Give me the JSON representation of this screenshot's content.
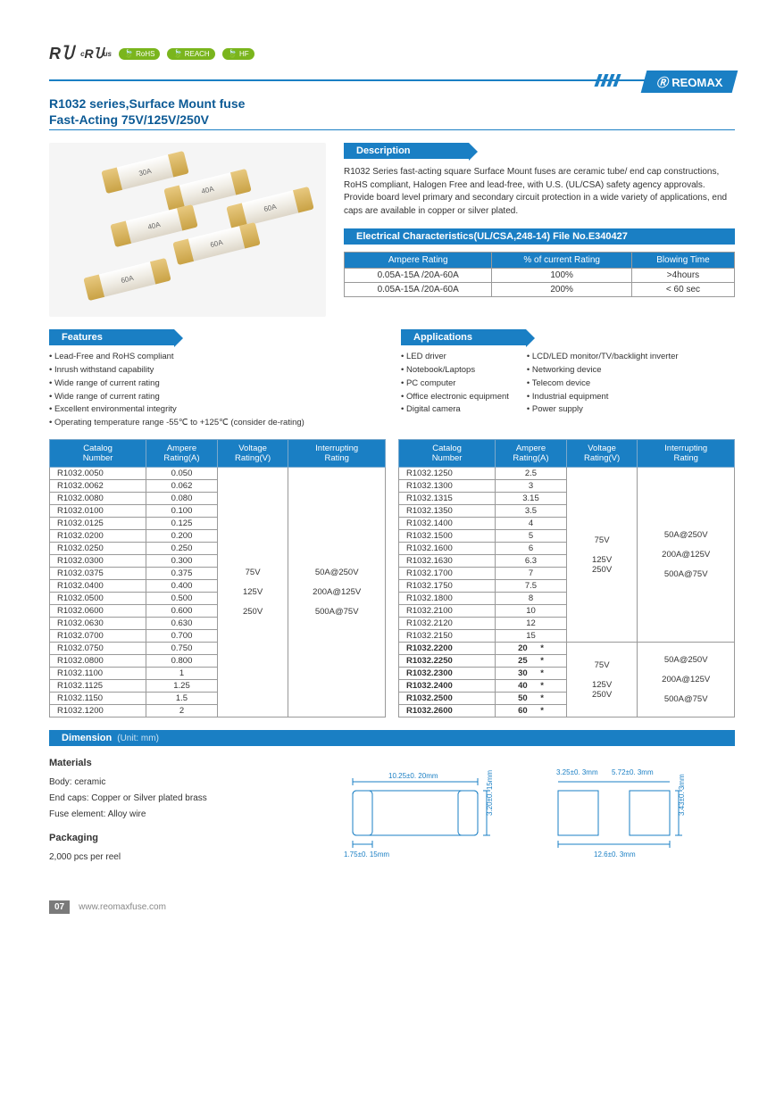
{
  "certifications": [
    "RoHS",
    "REACH",
    "HF"
  ],
  "brand": "REOMAX",
  "title_line1": "R1032 series,Surface Mount fuse",
  "title_line2": "Fast-Acting 75V/125V/250V",
  "fuse_labels": [
    "30A",
    "40A",
    "60A",
    "40A",
    "60A",
    "60A"
  ],
  "sections": {
    "description": "Description",
    "elec": "Electrical Characteristics(UL/CSA,248-14) File No.E340427",
    "features": "Features",
    "applications": "Applications",
    "dimension": "Dimension",
    "dim_unit": "(Unit: mm)"
  },
  "description_text": "R1032 Series fast-acting square Surface Mount fuses are ceramic tube/ end cap constructions, RoHS compliant, Halogen Free and lead-free, with U.S. (UL/CSA) safety agency approvals. Provide board level primary and secondary circuit protection  in a wide variety of applications, end caps are available in copper or silver plated.",
  "elec_table": {
    "headers": [
      "Ampere Rating",
      "% of current Rating",
      "Blowing Time"
    ],
    "rows": [
      [
        "0.05A-15A /20A-60A",
        "100%",
        ">4hours"
      ],
      [
        "0.05A-15A /20A-60A",
        "200%",
        "< 60 sec"
      ]
    ]
  },
  "features": [
    "Lead-Free and RoHS compliant",
    "Inrush withstand capability",
    "Wide range of current rating",
    "Wide range of current rating",
    "Excellent environmental integrity",
    "Operating temperature range -55℃ to +125℃ (consider de-rating)"
  ],
  "applications_col1": [
    "LED driver",
    "Notebook/Laptops",
    "PC computer",
    "Office electronic equipment",
    "Digital camera"
  ],
  "applications_col2": [
    "LCD/LED monitor/TV/backlight inverter",
    "Networking device",
    "Telecom device",
    "Industrial equipment",
    "Power supply"
  ],
  "spec_headers": [
    "Catalog\nNumber",
    "Ampere\nRating(A)",
    "Voltage\nRating(V)",
    "Interrupting\nRating"
  ],
  "spec_left": {
    "rows": [
      [
        "R1032.0050",
        "0.050"
      ],
      [
        "R1032.0062",
        "0.062"
      ],
      [
        "R1032.0080",
        "0.080"
      ],
      [
        "R1032.0100",
        "0.100"
      ],
      [
        "R1032.0125",
        "0.125"
      ],
      [
        "R1032.0200",
        "0.200"
      ],
      [
        "R1032.0250",
        "0.250"
      ],
      [
        "R1032.0300",
        "0.300"
      ],
      [
        "R1032.0375",
        "0.375"
      ],
      [
        "R1032.0400",
        "0.400"
      ],
      [
        "R1032.0500",
        "0.500"
      ],
      [
        "R1032.0600",
        "0.600"
      ],
      [
        "R1032.0630",
        "0.630"
      ],
      [
        "R1032.0700",
        "0.700"
      ],
      [
        "R1032.0750",
        "0.750"
      ],
      [
        "R1032.0800",
        "0.800"
      ],
      [
        "R1032.1100",
        "1"
      ],
      [
        "R1032.1125",
        "1.25"
      ],
      [
        "R1032.1150",
        "1.5"
      ],
      [
        "R1032.1200",
        "2"
      ]
    ],
    "voltage": "75V\n\n125V\n\n250V",
    "interrupt": "50A@250V\n\n200A@125V\n\n500A@75V"
  },
  "spec_right": {
    "rows1": [
      [
        "R1032.1250",
        "2.5"
      ],
      [
        "R1032.1300",
        "3"
      ],
      [
        "R1032.1315",
        "3.15"
      ],
      [
        "R1032.1350",
        "3.5"
      ],
      [
        "R1032.1400",
        "4"
      ],
      [
        "R1032.1500",
        "5"
      ],
      [
        "R1032.1600",
        "6"
      ],
      [
        "R1032.1630",
        "6.3"
      ],
      [
        "R1032.1700",
        "7"
      ],
      [
        "R1032.1750",
        "7.5"
      ],
      [
        "R1032.1800",
        "8"
      ],
      [
        "R1032.2100",
        "10"
      ],
      [
        "R1032.2120",
        "12"
      ],
      [
        "R1032.2150",
        "15"
      ]
    ],
    "rows2": [
      [
        "R1032.2200",
        "20",
        "*"
      ],
      [
        "R1032.2250",
        "25",
        "*"
      ],
      [
        "R1032.2300",
        "30",
        "*"
      ],
      [
        "R1032.2400",
        "40",
        "*"
      ],
      [
        "R1032.2500",
        "50",
        "*"
      ],
      [
        "R1032.2600",
        "60",
        "*"
      ]
    ],
    "voltage1": "75V\n\n125V\n250V",
    "interrupt1": "50A@250V\n\n200A@125V\n\n500A@75V",
    "voltage2": "75V\n\n125V\n250V",
    "interrupt2": "50A@250V\n\n200A@125V\n\n500A@75V"
  },
  "materials": {
    "heading": "Materials",
    "body": "Body: ceramic",
    "caps": "End caps: Copper or Silver plated brass",
    "element": "Fuse element: Alloy wire"
  },
  "packaging": {
    "heading": "Packaging",
    "text": "2,000 pcs per reel"
  },
  "dimensions": {
    "length": "10.25±0. 20mm",
    "cap_w": "1.75±0. 15mm",
    "height": "3.20±0. 15mm",
    "pad_w1": "3.25±0. 3mm",
    "pad_w2": "5.72±0. 3mm",
    "pad_total": "12.6±0. 3mm",
    "pad_h": "3.43±0. 3mm"
  },
  "footer": {
    "page": "07",
    "url": "www.reomaxfuse.com"
  },
  "colors": {
    "primary": "#1a7fc4",
    "green": "#7ab51d",
    "text": "#333333",
    "border": "#999999"
  }
}
